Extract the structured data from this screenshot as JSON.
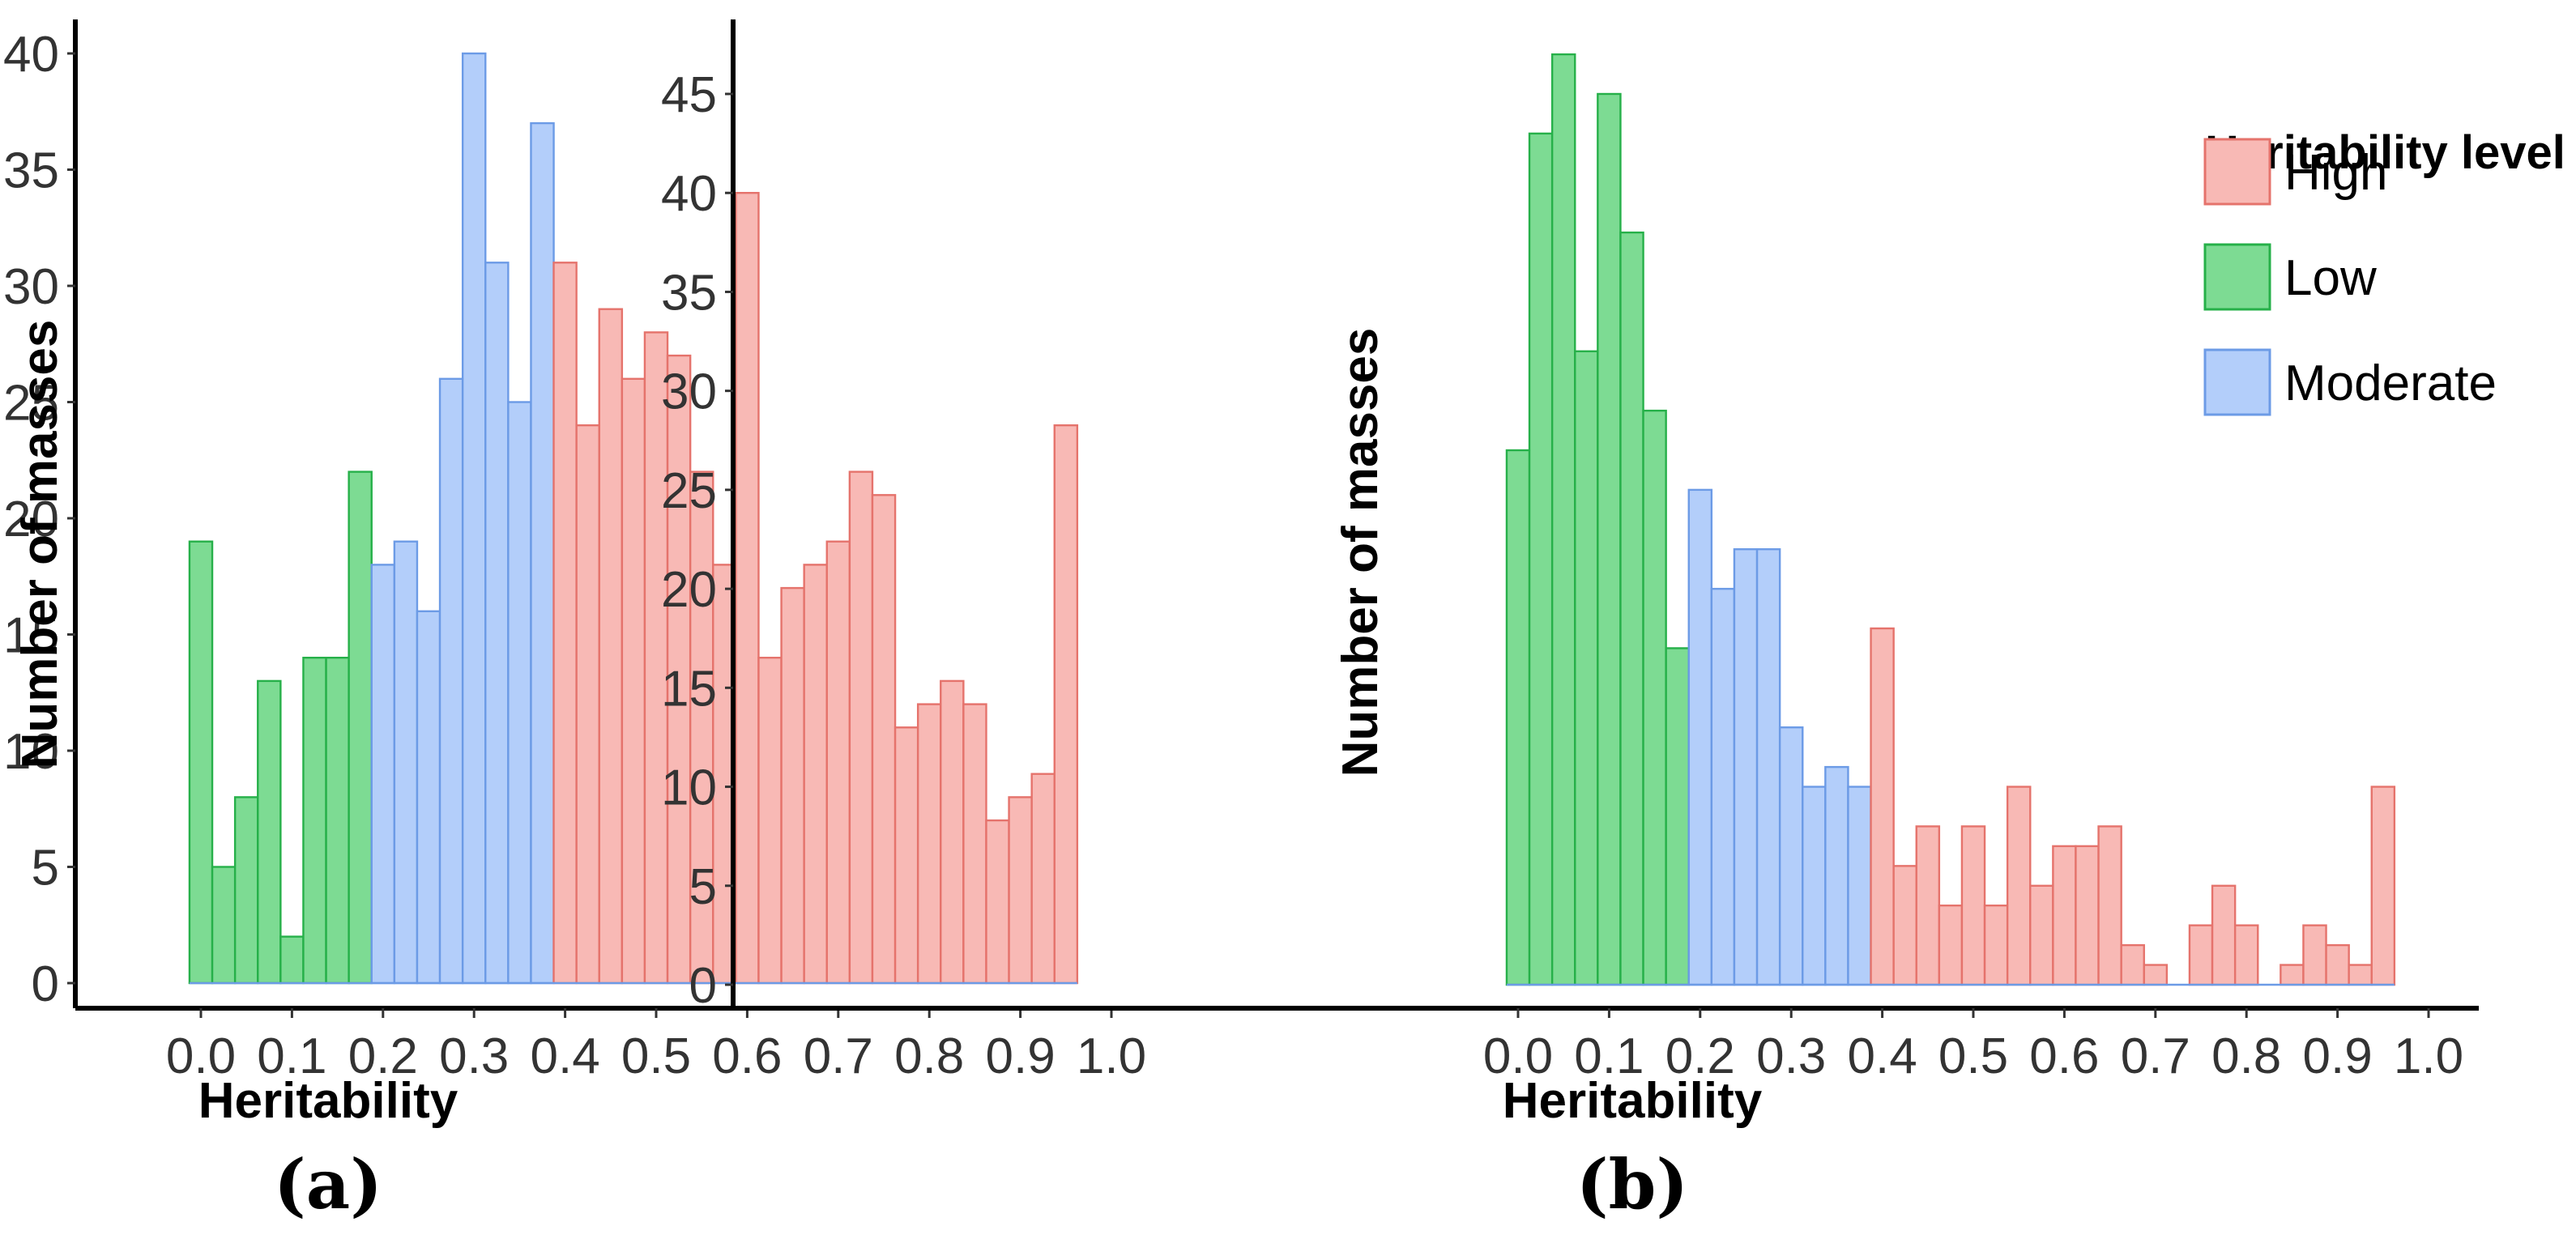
{
  "colors": {
    "High": {
      "fill": "#F8B9B5",
      "stroke": "#E5736C"
    },
    "Low": {
      "fill": "#7DDB93",
      "stroke": "#26B049"
    },
    "Moderate": {
      "fill": "#B3CEFA",
      "stroke": "#6C9BE6"
    }
  },
  "legend": {
    "title": "Heritability level",
    "entries": [
      {
        "label": "High",
        "level": "High"
      },
      {
        "label": "Low",
        "level": "Low"
      },
      {
        "label": "Moderate",
        "level": "Moderate"
      }
    ]
  },
  "chart_data": [
    {
      "type": "bar",
      "panel_label": "(a)",
      "xlabel": "Heritability",
      "ylabel": "Number of masses",
      "xlim": [
        -0.025,
        1.025
      ],
      "ylim": [
        0,
        40
      ],
      "yticks": [
        0,
        5,
        10,
        15,
        20,
        25,
        30,
        35,
        40
      ],
      "xticks": [
        0.0,
        0.1,
        0.2,
        0.3,
        0.4,
        0.5,
        0.6,
        0.7,
        0.8,
        0.9,
        1.0
      ],
      "xtick_labels": [
        "0.0",
        "0.1",
        "0.2",
        "0.3",
        "0.4",
        "0.5",
        "0.6",
        "0.7",
        "0.8",
        "0.9",
        "1.0"
      ],
      "bin_width": 0.025,
      "bin_start": -0.0125,
      "series": [
        {
          "name": "Low",
          "values": [
            19,
            5,
            8,
            13,
            2,
            14,
            14,
            22
          ]
        },
        {
          "name": "Moderate",
          "values": [
            18,
            19,
            16,
            26,
            40,
            31,
            25,
            37
          ]
        },
        {
          "name": "High",
          "values": [
            31,
            24,
            29,
            26,
            28,
            27,
            22,
            18,
            34,
            14,
            17,
            18,
            19,
            22,
            21,
            11,
            12,
            13,
            12,
            7,
            8,
            9,
            24
          ]
        }
      ]
    },
    {
      "type": "bar",
      "panel_label": "(b)",
      "xlabel": "Heritability",
      "ylabel": "Number of masses",
      "xlim": [
        -0.025,
        1.025
      ],
      "ylim": [
        0,
        47
      ],
      "yticks": [
        0,
        5,
        10,
        15,
        20,
        25,
        30,
        35,
        40,
        45
      ],
      "xticks": [
        0.0,
        0.1,
        0.2,
        0.3,
        0.4,
        0.5,
        0.6,
        0.7,
        0.8,
        0.9,
        1.0
      ],
      "xtick_labels": [
        "0.0",
        "0.1",
        "0.2",
        "0.3",
        "0.4",
        "0.5",
        "0.6",
        "0.7",
        "0.8",
        "0.9",
        "1.0"
      ],
      "bin_width": 0.025,
      "bin_start": -0.0125,
      "series": [
        {
          "name": "Low",
          "values": [
            27,
            43,
            47,
            32,
            45,
            38,
            29,
            17
          ]
        },
        {
          "name": "Moderate",
          "values": [
            25,
            20,
            22,
            22,
            13,
            10,
            11,
            10
          ]
        },
        {
          "name": "High",
          "values": [
            18,
            6,
            8,
            4,
            8,
            4,
            10,
            5,
            7,
            7,
            8,
            2,
            1,
            0,
            3,
            5,
            3,
            0,
            1,
            3,
            2,
            1,
            10
          ]
        }
      ]
    }
  ]
}
